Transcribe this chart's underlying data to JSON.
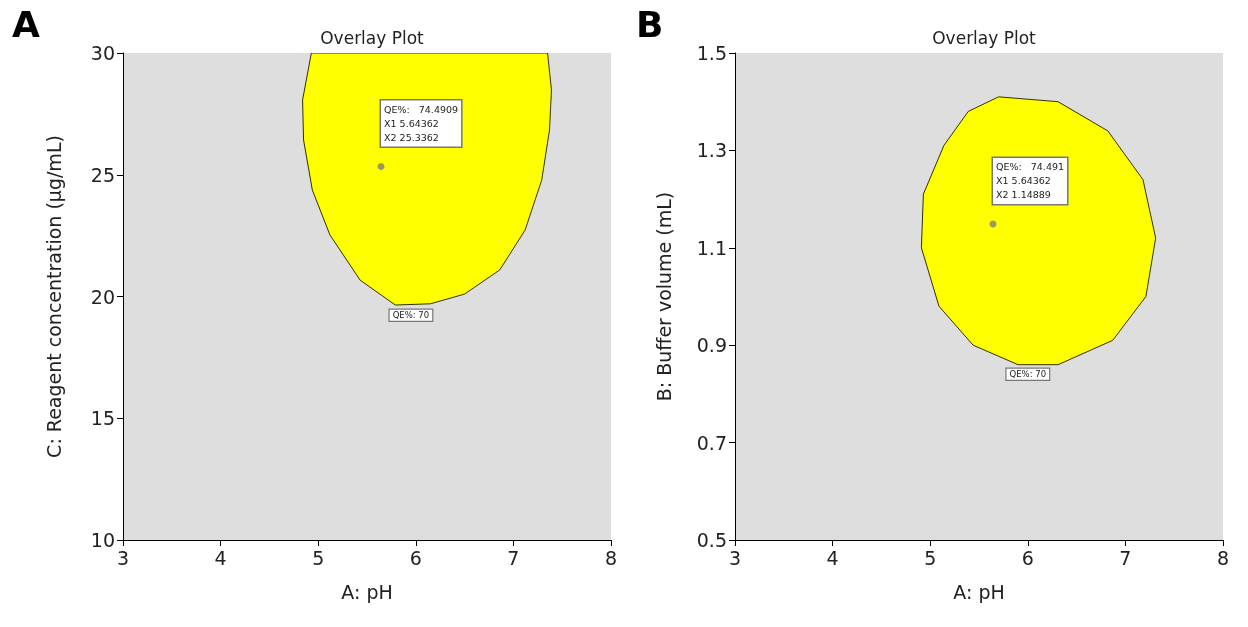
{
  "chart_data": [
    {
      "type": "area",
      "title": "Overlay Plot",
      "xlabel": "A: pH",
      "ylabel": "C: Reagent concentration (µg/mL)",
      "xlim": [
        3,
        8
      ],
      "xticks": [
        3,
        4,
        5,
        6,
        7,
        8
      ],
      "ylim": [
        10,
        30
      ],
      "yticks": [
        10,
        15,
        20,
        25,
        30
      ],
      "grid": false,
      "series": [
        {
          "type": "area",
          "color": "#ffff00",
          "x": [
            4.93,
            4.84,
            4.85,
            4.94,
            5.12,
            5.43,
            5.79,
            6.15,
            6.5,
            6.86,
            7.12,
            7.29,
            7.37,
            7.39,
            7.35
          ],
          "values": [
            30,
            28.07,
            26.43,
            24.37,
            22.53,
            20.67,
            19.65,
            19.7,
            20.1,
            21.09,
            22.73,
            24.78,
            26.84,
            28.48,
            30
          ]
        },
        {
          "type": "scatter",
          "color": "#808080",
          "marker": "circle",
          "x": [
            5.64362
          ],
          "values": [
            25.3362
          ]
        }
      ],
      "annotations": [
        "A",
        {
          "text": "QE%:   74.4909\nX1 5.64362\nX2 25.3362",
          "x": 5.64362,
          "y": 25.3362
        },
        {
          "text": "QE%: 70",
          "x": 5.95,
          "y": 19.62
        }
      ]
    },
    {
      "type": "area",
      "title": "Overlay Plot",
      "xlabel": "A: pH",
      "ylabel": "B: Buffer volume (mL)",
      "xlim": [
        3,
        8
      ],
      "xticks": [
        3,
        4,
        5,
        6,
        7,
        8
      ],
      "ylim": [
        0.5,
        1.5
      ],
      "yticks": [
        0.5,
        0.7,
        0.9,
        1.1,
        1.3,
        1.5
      ],
      "grid": false,
      "series": [
        {
          "type": "area",
          "color": "#ffff00",
          "x": [
            5.7,
            6.31,
            6.82,
            7.18,
            7.31,
            7.21,
            6.87,
            6.31,
            5.9,
            5.44,
            5.09,
            4.91,
            4.93,
            5.14,
            5.39
          ],
          "values": [
            1.41,
            1.4,
            1.34,
            1.24,
            1.12,
            1.0,
            0.91,
            0.86,
            0.86,
            0.9,
            0.98,
            1.1,
            1.21,
            1.31,
            1.38
          ]
        },
        {
          "type": "scatter",
          "color": "#808080",
          "marker": "circle",
          "x": [
            5.64362
          ],
          "values": [
            1.14889
          ]
        }
      ],
      "annotations": [
        "B",
        {
          "text": "QE%:   74.491\nX1 5.64362\nX2 1.14889",
          "x": 5.64362,
          "y": 1.14889
        },
        {
          "text": "QE%: 70",
          "x": 6.0,
          "y": 0.86
        }
      ]
    }
  ]
}
